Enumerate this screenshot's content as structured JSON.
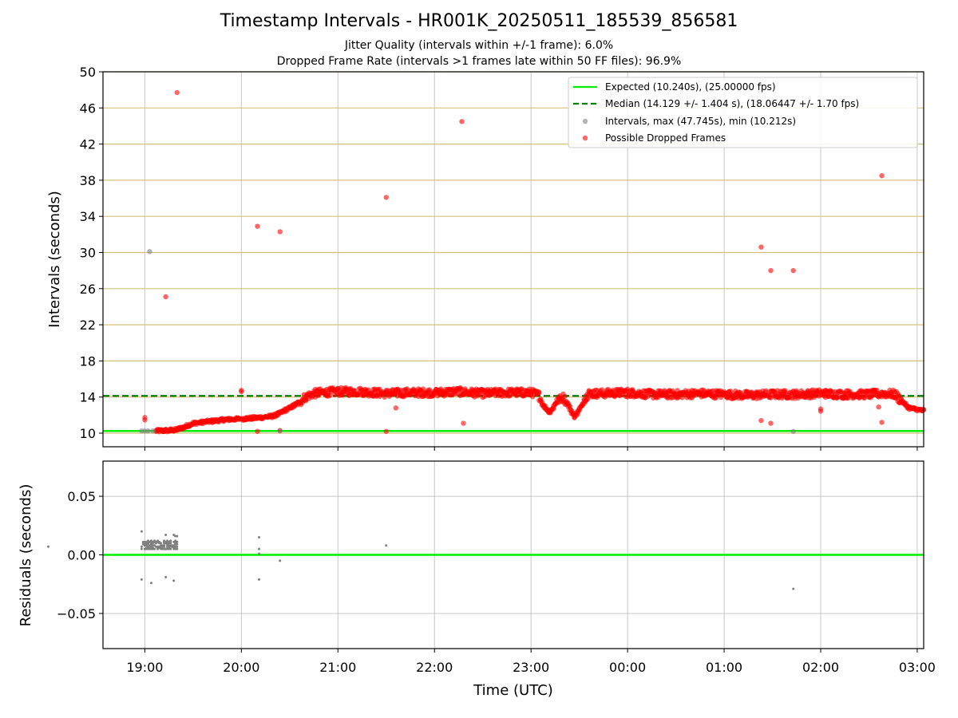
{
  "figure": {
    "title": "Timestamp Intervals - HR001K_20250511_185539_856581",
    "subtitle_1": "Jitter Quality (intervals within +/-1 frame): 6.0%",
    "subtitle_2": "Dropped Frame Rate (intervals >1 frames late within 50 FF files): 96.9%"
  },
  "chart_data": [
    {
      "type": "scatter",
      "panel": "top",
      "xlabel": "",
      "ylabel": "Intervals (seconds)",
      "x_ticks": [
        "19:00",
        "20:00",
        "21:00",
        "22:00",
        "23:00",
        "00:00",
        "01:00",
        "02:00",
        "03:00"
      ],
      "xlim": [
        "18:34",
        "03:04"
      ],
      "ylim": [
        8.5,
        50
      ],
      "y_ticks": [
        10,
        14,
        18,
        22,
        26,
        30,
        34,
        38,
        42,
        46,
        50
      ],
      "grid": true,
      "legend_position": "top-right",
      "legend": [
        "Expected (10.240s), (25.00000 fps)",
        "Median (14.129 +/- 1.404 s), (18.06447 +/- 1.70 fps)",
        "Intervals, max (47.745s), min (10.212s)",
        "Possible Dropped Frames"
      ],
      "expected_interval": 10.24,
      "median_interval": 14.129,
      "series": [
        {
          "name": "Possible Dropped Frames",
          "color": "#ff0000",
          "trend": [
            [
              "19:07",
              10.26
            ],
            [
              "19:15",
              10.3
            ],
            [
              "19:20",
              10.4
            ],
            [
              "19:25",
              10.7
            ],
            [
              "19:30",
              11.1
            ],
            [
              "19:40",
              11.3
            ],
            [
              "19:50",
              11.5
            ],
            [
              "20:00",
              11.6
            ],
            [
              "20:10",
              11.7
            ],
            [
              "20:15",
              11.8
            ],
            [
              "20:20",
              11.9
            ],
            [
              "20:25",
              12.3
            ],
            [
              "20:30",
              12.8
            ],
            [
              "20:35",
              13.3
            ],
            [
              "20:40",
              14.0
            ],
            [
              "20:45",
              14.4
            ],
            [
              "20:50",
              14.5
            ],
            [
              "21:00",
              14.6
            ],
            [
              "21:15",
              14.6
            ],
            [
              "21:30",
              14.4
            ],
            [
              "21:45",
              14.5
            ],
            [
              "22:00",
              14.5
            ],
            [
              "22:15",
              14.6
            ],
            [
              "22:30",
              14.4
            ],
            [
              "22:45",
              14.5
            ],
            [
              "23:00",
              14.5
            ],
            [
              "23:05",
              14.2
            ],
            [
              "23:08",
              13.0
            ],
            [
              "23:12",
              12.3
            ],
            [
              "23:16",
              13.6
            ],
            [
              "23:20",
              14.0
            ],
            [
              "23:23",
              13.2
            ],
            [
              "23:27",
              11.8
            ],
            [
              "23:30",
              12.6
            ],
            [
              "23:33",
              13.8
            ],
            [
              "23:36",
              14.4
            ],
            [
              "23:45",
              14.4
            ],
            [
              "00:00",
              14.5
            ],
            [
              "00:15",
              14.3
            ],
            [
              "00:30",
              14.3
            ],
            [
              "00:45",
              14.4
            ],
            [
              "01:00",
              14.3
            ],
            [
              "01:15",
              14.2
            ],
            [
              "01:30",
              14.3
            ],
            [
              "01:45",
              14.3
            ],
            [
              "02:00",
              14.4
            ],
            [
              "02:15",
              14.3
            ],
            [
              "02:30",
              14.3
            ],
            [
              "02:40",
              14.4
            ],
            [
              "02:46",
              14.3
            ],
            [
              "02:50",
              13.6
            ],
            [
              "02:55",
              12.8
            ],
            [
              "03:00",
              12.6
            ],
            [
              "03:04",
              12.5
            ]
          ],
          "outliers": [
            [
              "19:13",
              25.1
            ],
            [
              "19:20",
              47.7
            ],
            [
              "20:10",
              32.9
            ],
            [
              "20:24",
              32.3
            ],
            [
              "20:10",
              10.2
            ],
            [
              "20:24",
              10.3
            ],
            [
              "21:30",
              36.1
            ],
            [
              "21:30",
              10.2
            ],
            [
              "21:36",
              12.8
            ],
            [
              "22:17",
              44.5
            ],
            [
              "22:18",
              11.1
            ],
            [
              "01:23",
              30.6
            ],
            [
              "01:23",
              11.4
            ],
            [
              "01:29",
              28.0
            ],
            [
              "01:29",
              11.1
            ],
            [
              "01:43",
              28.0
            ],
            [
              "02:38",
              38.5
            ],
            [
              "02:38",
              11.2
            ],
            [
              "02:36",
              12.9
            ]
          ]
        },
        {
          "name": "Intervals, max (47.745s), min (10.212s)",
          "color": "#808080",
          "points": [
            [
              "19:03",
              30.1
            ],
            [
              "18:58",
              10.25
            ],
            [
              "19:00",
              10.25
            ],
            [
              "19:02",
              10.25
            ],
            [
              "19:05",
              10.25
            ],
            [
              "20:24",
              10.25
            ],
            [
              "01:43",
              10.2
            ]
          ]
        }
      ]
    },
    {
      "type": "scatter",
      "panel": "bottom",
      "xlabel": "Time (UTC)",
      "ylabel": "Residuals (seconds)",
      "x_ticks": [
        "19:00",
        "20:00",
        "21:00",
        "22:00",
        "23:00",
        "00:00",
        "01:00",
        "02:00",
        "03:00"
      ],
      "y_tick_labels": [
        "0.05",
        "0.00",
        "−0.05"
      ],
      "y_ticks": [
        0.05,
        0.0,
        -0.05
      ],
      "ylim": [
        -0.08,
        0.08
      ],
      "grid": true,
      "zero_line_color": "#00ee00",
      "series": [
        {
          "name": "",
          "color": "#808080",
          "points": [
            [
              "18:58",
              0.02
            ],
            [
              "18:58",
              -0.021
            ],
            [
              "19:04",
              -0.024
            ],
            [
              "19:13",
              -0.019
            ],
            [
              "19:18",
              -0.022
            ],
            [
              "19:13",
              0.017
            ],
            [
              "19:18",
              0.017
            ],
            [
              "19:19",
              0.016
            ],
            [
              "19:20",
              0.016
            ],
            [
              "20:11",
              0.015
            ],
            [
              "20:11",
              0.005
            ],
            [
              "20:11",
              0.001
            ],
            [
              "20:11",
              -0.021
            ],
            [
              "20:24",
              -0.005
            ],
            [
              "21:30",
              0.008
            ],
            [
              "01:43",
              -0.029
            ]
          ],
          "cluster": {
            "from": "18:58",
            "to": "19:20",
            "values": [
              0.005,
              0.006,
              0.007,
              0.008,
              0.009,
              0.01,
              0.011,
              0.012
            ]
          }
        }
      ]
    }
  ]
}
